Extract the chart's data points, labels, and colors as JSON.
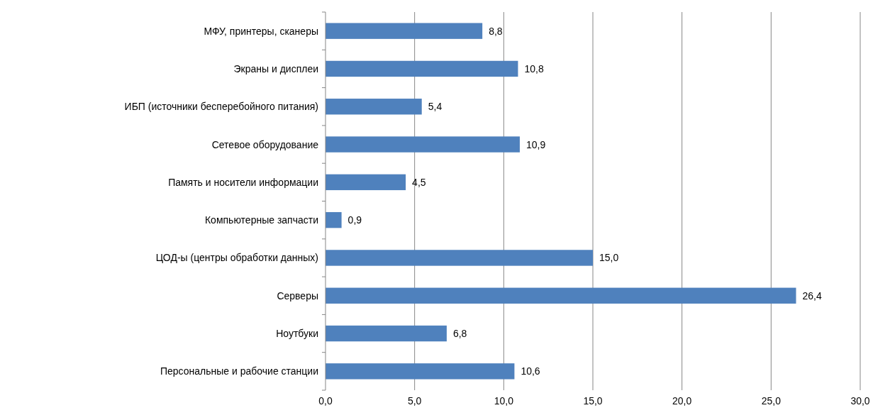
{
  "chart_data": {
    "type": "bar",
    "orientation": "horizontal",
    "categories": [
      "МФУ, принтеры, сканеры",
      "Экраны и дисплеи",
      "ИБП (источники бесперебойного питания)",
      "Сетевое оборудование",
      "Память и носители информации",
      "Компьютерные запчасти",
      "ЦОД-ы (центры обработки данных)",
      "Серверы",
      "Ноутбуки",
      "Персональные и рабочие станции"
    ],
    "values": [
      8.8,
      10.8,
      5.4,
      10.9,
      4.5,
      0.9,
      15.0,
      26.4,
      6.8,
      10.6
    ],
    "value_labels": [
      "8,8",
      "10,8",
      "5,4",
      "10,9",
      "4,5",
      "0,9",
      "15,0",
      "26,4",
      "6,8",
      "10,6"
    ],
    "color": "#4f81bd",
    "xlim": [
      0,
      30
    ],
    "xticks": [
      {
        "value": 0,
        "label": "0,0"
      },
      {
        "value": 5,
        "label": "5,0"
      },
      {
        "value": 10,
        "label": "10,0"
      },
      {
        "value": 15,
        "label": "15,0"
      },
      {
        "value": 20,
        "label": "20,0"
      },
      {
        "value": 25,
        "label": "25,0"
      },
      {
        "value": 30,
        "label": "30,0"
      }
    ],
    "grid": "x"
  }
}
